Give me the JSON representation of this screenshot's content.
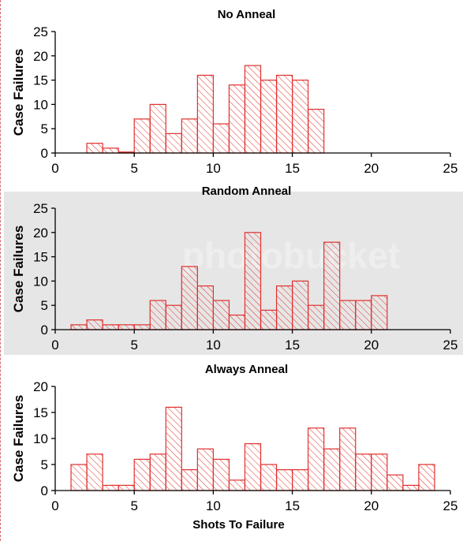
{
  "chart_data": [
    {
      "type": "bar",
      "title": "No Anneal",
      "ylabel": "Case Failures",
      "xlabel": "",
      "xlim": [
        0,
        25
      ],
      "ylim": [
        0,
        25
      ],
      "xticks": [
        "0",
        "5",
        "10",
        "15",
        "20",
        "25"
      ],
      "yticks": [
        "0",
        "5",
        "10",
        "15",
        "20",
        "25"
      ],
      "x": [
        1,
        2,
        3,
        4,
        5,
        6,
        7,
        8,
        9,
        10,
        11,
        12,
        13,
        14,
        15,
        16,
        17,
        18,
        19,
        20,
        21,
        22,
        23,
        24
      ],
      "values": [
        0,
        2,
        1,
        0.2,
        7,
        10,
        4,
        7,
        16,
        6,
        14,
        18,
        15,
        16,
        15,
        9,
        0,
        0,
        0,
        0,
        0,
        0,
        0,
        0
      ],
      "bar_color": "#e0302e",
      "background": "#ffffff"
    },
    {
      "type": "bar",
      "title": "Random Anneal",
      "ylabel": "Case Failures",
      "xlabel": "",
      "xlim": [
        0,
        25
      ],
      "ylim": [
        0,
        25
      ],
      "xticks": [
        "0",
        "5",
        "10",
        "15",
        "20",
        "25"
      ],
      "yticks": [
        "0",
        "5",
        "10",
        "15",
        "20",
        "25"
      ],
      "x": [
        1,
        2,
        3,
        4,
        5,
        6,
        7,
        8,
        9,
        10,
        11,
        12,
        13,
        14,
        15,
        16,
        17,
        18,
        19,
        20,
        21,
        22,
        23,
        24
      ],
      "values": [
        1,
        2,
        1,
        1,
        1,
        6,
        5,
        13,
        9,
        6,
        3,
        20,
        4,
        9,
        10,
        5,
        18,
        6,
        6,
        7,
        0,
        0,
        0,
        0
      ],
      "bar_color": "#e0302e",
      "background": "#e6e6e6"
    },
    {
      "type": "bar",
      "title": "Always Anneal",
      "ylabel": "Case Failures",
      "xlabel": "Shots To Failure",
      "xlim": [
        0,
        25
      ],
      "ylim": [
        0,
        20
      ],
      "xticks": [
        "0",
        "5",
        "10",
        "15",
        "20",
        "25"
      ],
      "yticks": [
        "0",
        "5",
        "10",
        "15",
        "20"
      ],
      "x": [
        1,
        2,
        3,
        4,
        5,
        6,
        7,
        8,
        9,
        10,
        11,
        12,
        13,
        14,
        15,
        16,
        17,
        18,
        19,
        20,
        21,
        22,
        23,
        24
      ],
      "values": [
        5,
        7,
        1,
        1,
        6,
        7,
        16,
        4,
        8,
        6,
        2,
        9,
        5,
        4,
        4,
        12,
        8,
        12,
        7,
        7,
        3,
        1,
        5,
        0
      ],
      "bar_color": "#e0302e",
      "background": "#ffffff"
    }
  ],
  "watermark": "photobucket"
}
